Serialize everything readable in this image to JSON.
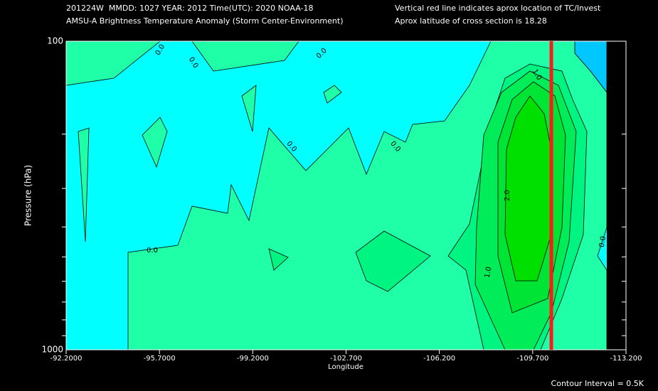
{
  "chart_data": {
    "type": "contour",
    "header_left": [
      "201224W  MMDD: 1027 YEAR: 2012 Time(UTC): 2020 NOAA-18",
      "AMSU-A Brightness Temperature Anomaly (Storm Center-Environment)"
    ],
    "header_right": [
      "Vertical red line indicates aprox location of TC/Invest",
      "Aprox latitude of cross section is 18.28"
    ],
    "xlabel": "Longitude",
    "ylabel": "Pressure (hPa)",
    "xlim": [
      -92.2,
      -113.2
    ],
    "xticks": [
      {
        "value": -92.2,
        "label": "-92.2000"
      },
      {
        "value": -95.7,
        "label": "-95.7000"
      },
      {
        "value": -99.2,
        "label": "-99.2000"
      },
      {
        "value": -102.7,
        "label": "-102.700"
      },
      {
        "value": -106.2,
        "label": "-106.200"
      },
      {
        "value": -109.7,
        "label": "-109.700"
      },
      {
        "value": -113.2,
        "label": "-113.200"
      }
    ],
    "ylim": [
      100,
      1000
    ],
    "y_log_scale": true,
    "yticks": [
      100,
      1000
    ],
    "minor_yticks": [
      200,
      300,
      400,
      500,
      600,
      700,
      800,
      900
    ],
    "tc_longitude": -110.4,
    "tc_line_color": "#ff1a1a",
    "levels": [
      {
        "value": -1.0,
        "color": "#00c8ff"
      },
      {
        "value": -0.5,
        "color": "#00ffff"
      },
      {
        "value": 0.0,
        "color": "#1effa8"
      },
      {
        "value": 0.5,
        "color": "#00f482"
      },
      {
        "value": 1.0,
        "color": "#00ec58"
      },
      {
        "value": 1.5,
        "color": "#00e436"
      },
      {
        "value": 2.0,
        "color": "#00e000"
      }
    ],
    "contour_labels": [
      {
        "value": 0,
        "label": "0.0"
      },
      {
        "value": 0,
        "label": "0.0"
      },
      {
        "value": 0,
        "label": "0.0"
      },
      {
        "value": 0,
        "label": "0.0"
      },
      {
        "value": 0,
        "label": "0.0"
      },
      {
        "value": 0,
        "label": "0.0"
      },
      {
        "value": 0,
        "label": "0.0"
      },
      {
        "value": 1,
        "label": "1.0"
      },
      {
        "value": 1,
        "label": "1.0"
      },
      {
        "value": 2,
        "label": "2.0"
      }
    ],
    "contour_interval_label": "Contour Interval = 0.5K"
  }
}
